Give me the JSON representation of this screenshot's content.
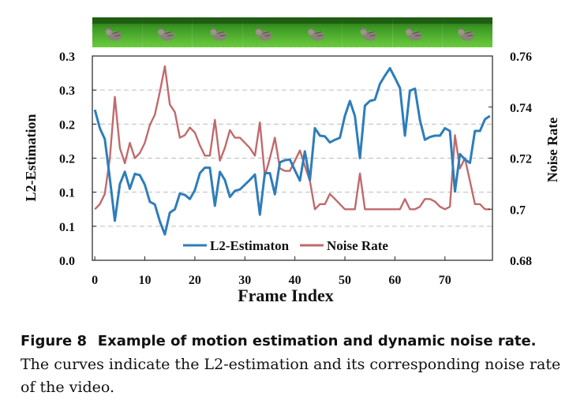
{
  "chart_data": {
    "type": "line",
    "xlabel": "Frame Index",
    "ylabel_left": "L2-Estimation",
    "ylabel_right": "Noise Rate",
    "x_ticks": [
      "0",
      "10",
      "20",
      "30",
      "40",
      "50",
      "60",
      "70"
    ],
    "x_tick_values": [
      0,
      10,
      20,
      30,
      40,
      50,
      60,
      70
    ],
    "xlim": [
      -0.5,
      79.5
    ],
    "y_left_ticks": [
      "0.0",
      "0.1",
      "0.1",
      "0.2",
      "0.2",
      "0.3",
      "0.3"
    ],
    "y_left_tick_values": [
      0.0,
      0.05,
      0.1,
      0.15,
      0.2,
      0.25,
      0.3
    ],
    "ylim_left": [
      0.0,
      0.3
    ],
    "y_right_ticks": [
      "0.68",
      "0.7",
      "0.72",
      "0.74",
      "0.76"
    ],
    "y_right_tick_values": [
      0.68,
      0.7,
      0.72,
      0.74,
      0.76
    ],
    "ylim_right": [
      0.68,
      0.76
    ],
    "grid": "horizontal dashed",
    "legend_position": "bottom-center",
    "series": [
      {
        "name": "L2-Estimaton",
        "axis": "left",
        "color": "#2e7dba",
        "values": [
          0.221,
          0.194,
          0.178,
          0.12,
          0.058,
          0.112,
          0.13,
          0.105,
          0.127,
          0.125,
          0.111,
          0.086,
          0.082,
          0.057,
          0.038,
          0.07,
          0.075,
          0.098,
          0.096,
          0.09,
          0.103,
          0.128,
          0.136,
          0.136,
          0.08,
          0.13,
          0.118,
          0.093,
          0.102,
          0.104,
          0.111,
          0.118,
          0.126,
          0.067,
          0.128,
          0.128,
          0.097,
          0.144,
          0.147,
          0.148,
          0.132,
          0.117,
          0.16,
          0.118,
          0.194,
          0.183,
          0.182,
          0.173,
          0.177,
          0.18,
          0.212,
          0.234,
          0.212,
          0.15,
          0.227,
          0.234,
          0.236,
          0.259,
          0.271,
          0.282,
          0.268,
          0.253,
          0.183,
          0.249,
          0.252,
          0.206,
          0.177,
          0.181,
          0.183,
          0.183,
          0.194,
          0.19,
          0.101,
          0.156,
          0.148,
          0.143,
          0.19,
          0.19,
          0.207,
          0.212
        ]
      },
      {
        "name": "Noise Rate",
        "axis": "right",
        "color": "#c06a6d",
        "values": [
          0.7,
          0.702,
          0.706,
          0.72,
          0.744,
          0.724,
          0.718,
          0.726,
          0.72,
          0.722,
          0.726,
          0.733,
          0.737,
          0.746,
          0.756,
          0.741,
          0.738,
          0.728,
          0.729,
          0.732,
          0.73,
          0.725,
          0.721,
          0.721,
          0.735,
          0.719,
          0.724,
          0.731,
          0.728,
          0.728,
          0.726,
          0.724,
          0.721,
          0.734,
          0.713,
          0.72,
          0.728,
          0.716,
          0.715,
          0.715,
          0.719,
          0.723,
          0.717,
          0.711,
          0.7,
          0.702,
          0.702,
          0.706,
          0.704,
          0.702,
          0.7,
          0.7,
          0.7,
          0.714,
          0.7,
          0.7,
          0.7,
          0.7,
          0.7,
          0.7,
          0.7,
          0.7,
          0.704,
          0.7,
          0.7,
          0.701,
          0.704,
          0.704,
          0.703,
          0.701,
          0.7,
          0.701,
          0.729,
          0.716,
          0.72,
          0.711,
          0.702,
          0.702,
          0.7,
          0.7
        ]
      }
    ]
  },
  "strip": {
    "frame_count": 8,
    "colors": {
      "grass_dark": "#2f8a1c",
      "grass_light": "#63c13a",
      "hedge": "#1f5e12",
      "cat": "#8a8378"
    }
  },
  "caption": {
    "label": "Figure 8",
    "title": "Example of motion estimation and dynamic noise rate.",
    "body": "The curves indicate the L2-estimation and its corresponding noise rate of the video."
  }
}
